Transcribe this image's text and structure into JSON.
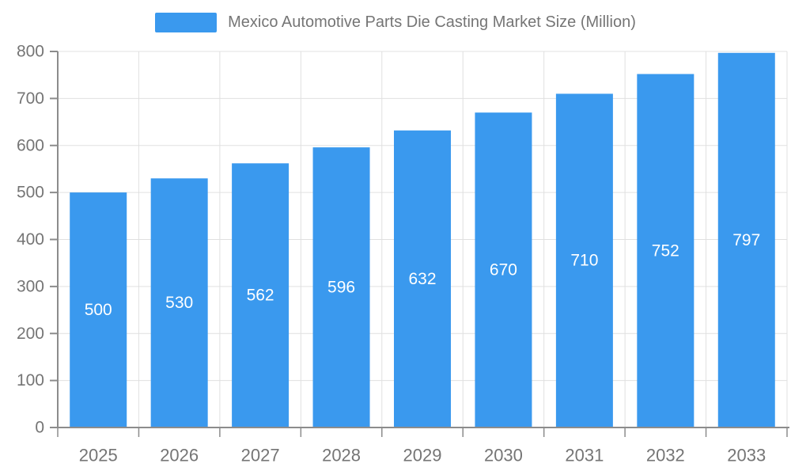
{
  "legend": {
    "label": "Mexico Automotive Parts Die Casting Market Size (Million)"
  },
  "chart_data": {
    "type": "bar",
    "title": "Mexico Automotive Parts Die Casting Market Size (Million)",
    "categories": [
      "2025",
      "2026",
      "2027",
      "2028",
      "2029",
      "2030",
      "2031",
      "2032",
      "2033"
    ],
    "values": [
      500,
      530,
      562,
      596,
      632,
      670,
      710,
      752,
      797
    ],
    "xlabel": "",
    "ylabel": "",
    "ylim": [
      0,
      800
    ],
    "yticks": [
      0,
      100,
      200,
      300,
      400,
      500,
      600,
      700,
      800
    ],
    "grid": true,
    "legend_position": "top",
    "colors": {
      "bar": "#3a99ee",
      "bar_value_label": "#ffffff",
      "axis": "#8c8c8c",
      "gridline": "#e0e0e0",
      "tick_text": "#757575"
    }
  }
}
